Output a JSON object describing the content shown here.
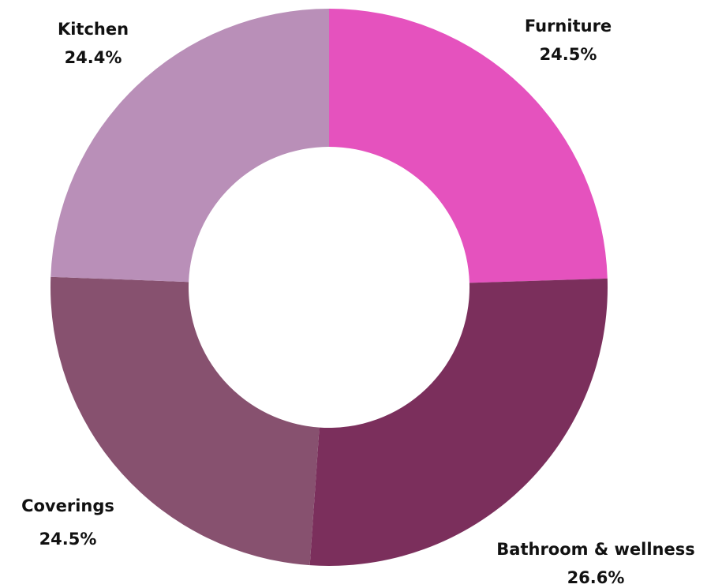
{
  "chart_data": {
    "type": "donut",
    "categories": [
      "Furniture",
      "Bathroom & wellness",
      "Coverings",
      "Kitchen"
    ],
    "values": [
      24.5,
      26.6,
      24.5,
      24.4
    ],
    "value_labels": [
      "24.5%",
      "26.6%",
      "24.5%",
      "24.4%"
    ],
    "colors": [
      "#e552be",
      "#7b2f5c",
      "#87516f",
      "#b98fb8"
    ]
  }
}
